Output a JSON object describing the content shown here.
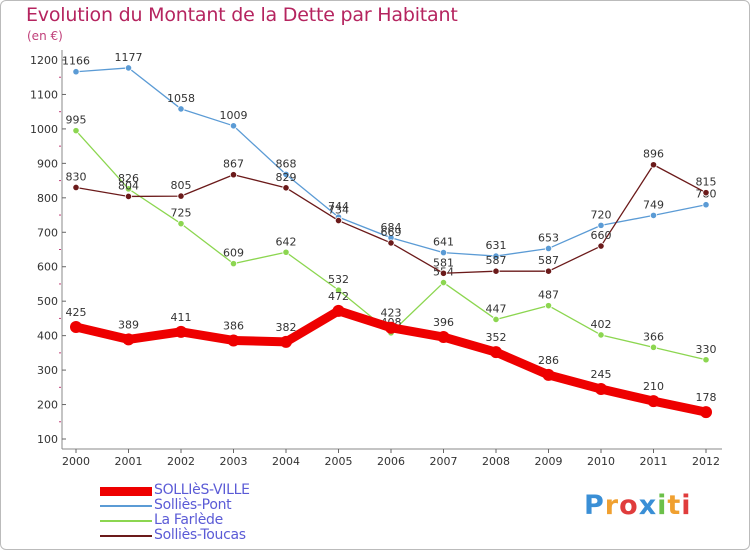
{
  "header": {
    "title": "Evolution du Montant de la Dette par Habitant",
    "subtitle": "(en €)"
  },
  "logo": {
    "text": "Proxiti"
  },
  "chart_data": {
    "type": "line",
    "x": [
      2000,
      2001,
      2002,
      2003,
      2004,
      2005,
      2006,
      2007,
      2008,
      2009,
      2010,
      2011,
      2012
    ],
    "ylim": [
      100,
      1200
    ],
    "yticks": [
      100,
      200,
      300,
      400,
      500,
      600,
      700,
      800,
      900,
      1000,
      1100,
      1200
    ],
    "grid": false,
    "legend_position": "bottom-left",
    "series": [
      {
        "name": "Solliès-Pont",
        "color": "#5b9bd5",
        "values": [
          1166,
          1177,
          1058,
          1009,
          868,
          744,
          684,
          641,
          631,
          653,
          720,
          749,
          780
        ]
      },
      {
        "name": "La Farlède",
        "color": "#8cd650",
        "values": [
          995,
          826,
          725,
          609,
          642,
          532,
          408,
          554,
          447,
          487,
          402,
          366,
          330
        ]
      },
      {
        "name": "Solliès-Toucas",
        "color": "#6b1a1a",
        "values": [
          830,
          804,
          805,
          867,
          829,
          734,
          669,
          581,
          587,
          587,
          660,
          896,
          815
        ]
      },
      {
        "name": "SOLLIèS-VILLE",
        "color": "#ee0000",
        "values": [
          425,
          389,
          411,
          386,
          382,
          472,
          423,
          396,
          352,
          286,
          245,
          210,
          178
        ]
      }
    ]
  }
}
